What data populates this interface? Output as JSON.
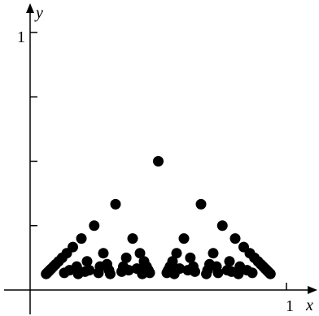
{
  "chart_data": {
    "type": "scatter",
    "x_label": "x",
    "y_label": "y",
    "xlim": [
      0,
      1
    ],
    "ylim": [
      0,
      1
    ],
    "xticks": [
      1
    ],
    "yticks": [
      {
        "value": 0.25,
        "label": null
      },
      {
        "value": 0.5,
        "label": null
      },
      {
        "value": 0.75,
        "label": null
      },
      1
    ],
    "color": "#000000",
    "x": [
      0.5,
      0.3333,
      0.6667,
      0.25,
      0.75,
      0.2,
      0.4,
      0.6,
      0.8,
      0.1667,
      0.8333,
      0.1429,
      0.2857,
      0.4286,
      0.5714,
      0.7143,
      0.8571,
      0.125,
      0.375,
      0.625,
      0.875,
      0.1111,
      0.2222,
      0.4444,
      0.5556,
      0.7778,
      0.8889,
      0.1,
      0.3,
      0.7,
      0.9,
      0.0909,
      0.1818,
      0.2727,
      0.3636,
      0.4545,
      0.5455,
      0.6364,
      0.7273,
      0.8182,
      0.9091,
      0.0833,
      0.4167,
      0.5833,
      0.9167,
      0.0769,
      0.1538,
      0.2308,
      0.3077,
      0.3846,
      0.4615,
      0.5385,
      0.6154,
      0.6923,
      0.7692,
      0.8462,
      0.9231,
      0.0714,
      0.2143,
      0.3571,
      0.6429,
      0.7857,
      0.9286,
      0.0667,
      0.1333,
      0.2667,
      0.4667,
      0.5333,
      0.7333,
      0.8667,
      0.9333,
      0.0625,
      0.1875,
      0.3125,
      0.4375,
      0.5625,
      0.6875,
      0.8125,
      0.9375
    ],
    "values": [
      0.5,
      0.3333,
      0.3333,
      0.25,
      0.25,
      0.2,
      0.2,
      0.2,
      0.2,
      0.1667,
      0.1667,
      0.1429,
      0.1429,
      0.1429,
      0.1429,
      0.1429,
      0.1429,
      0.125,
      0.125,
      0.125,
      0.125,
      0.1111,
      0.1111,
      0.1111,
      0.1111,
      0.1111,
      0.1111,
      0.1,
      0.1,
      0.1,
      0.1,
      0.0909,
      0.0909,
      0.0909,
      0.0909,
      0.0909,
      0.0909,
      0.0909,
      0.0909,
      0.0909,
      0.0909,
      0.0833,
      0.0833,
      0.0833,
      0.0833,
      0.0769,
      0.0769,
      0.0769,
      0.0769,
      0.0769,
      0.0769,
      0.0769,
      0.0769,
      0.0769,
      0.0769,
      0.0769,
      0.0769,
      0.0714,
      0.0714,
      0.0714,
      0.0714,
      0.0714,
      0.0714,
      0.0667,
      0.0667,
      0.0667,
      0.0667,
      0.0667,
      0.0667,
      0.0667,
      0.0667,
      0.0625,
      0.0625,
      0.0625,
      0.0625,
      0.0625,
      0.0625,
      0.0625,
      0.0625
    ]
  }
}
